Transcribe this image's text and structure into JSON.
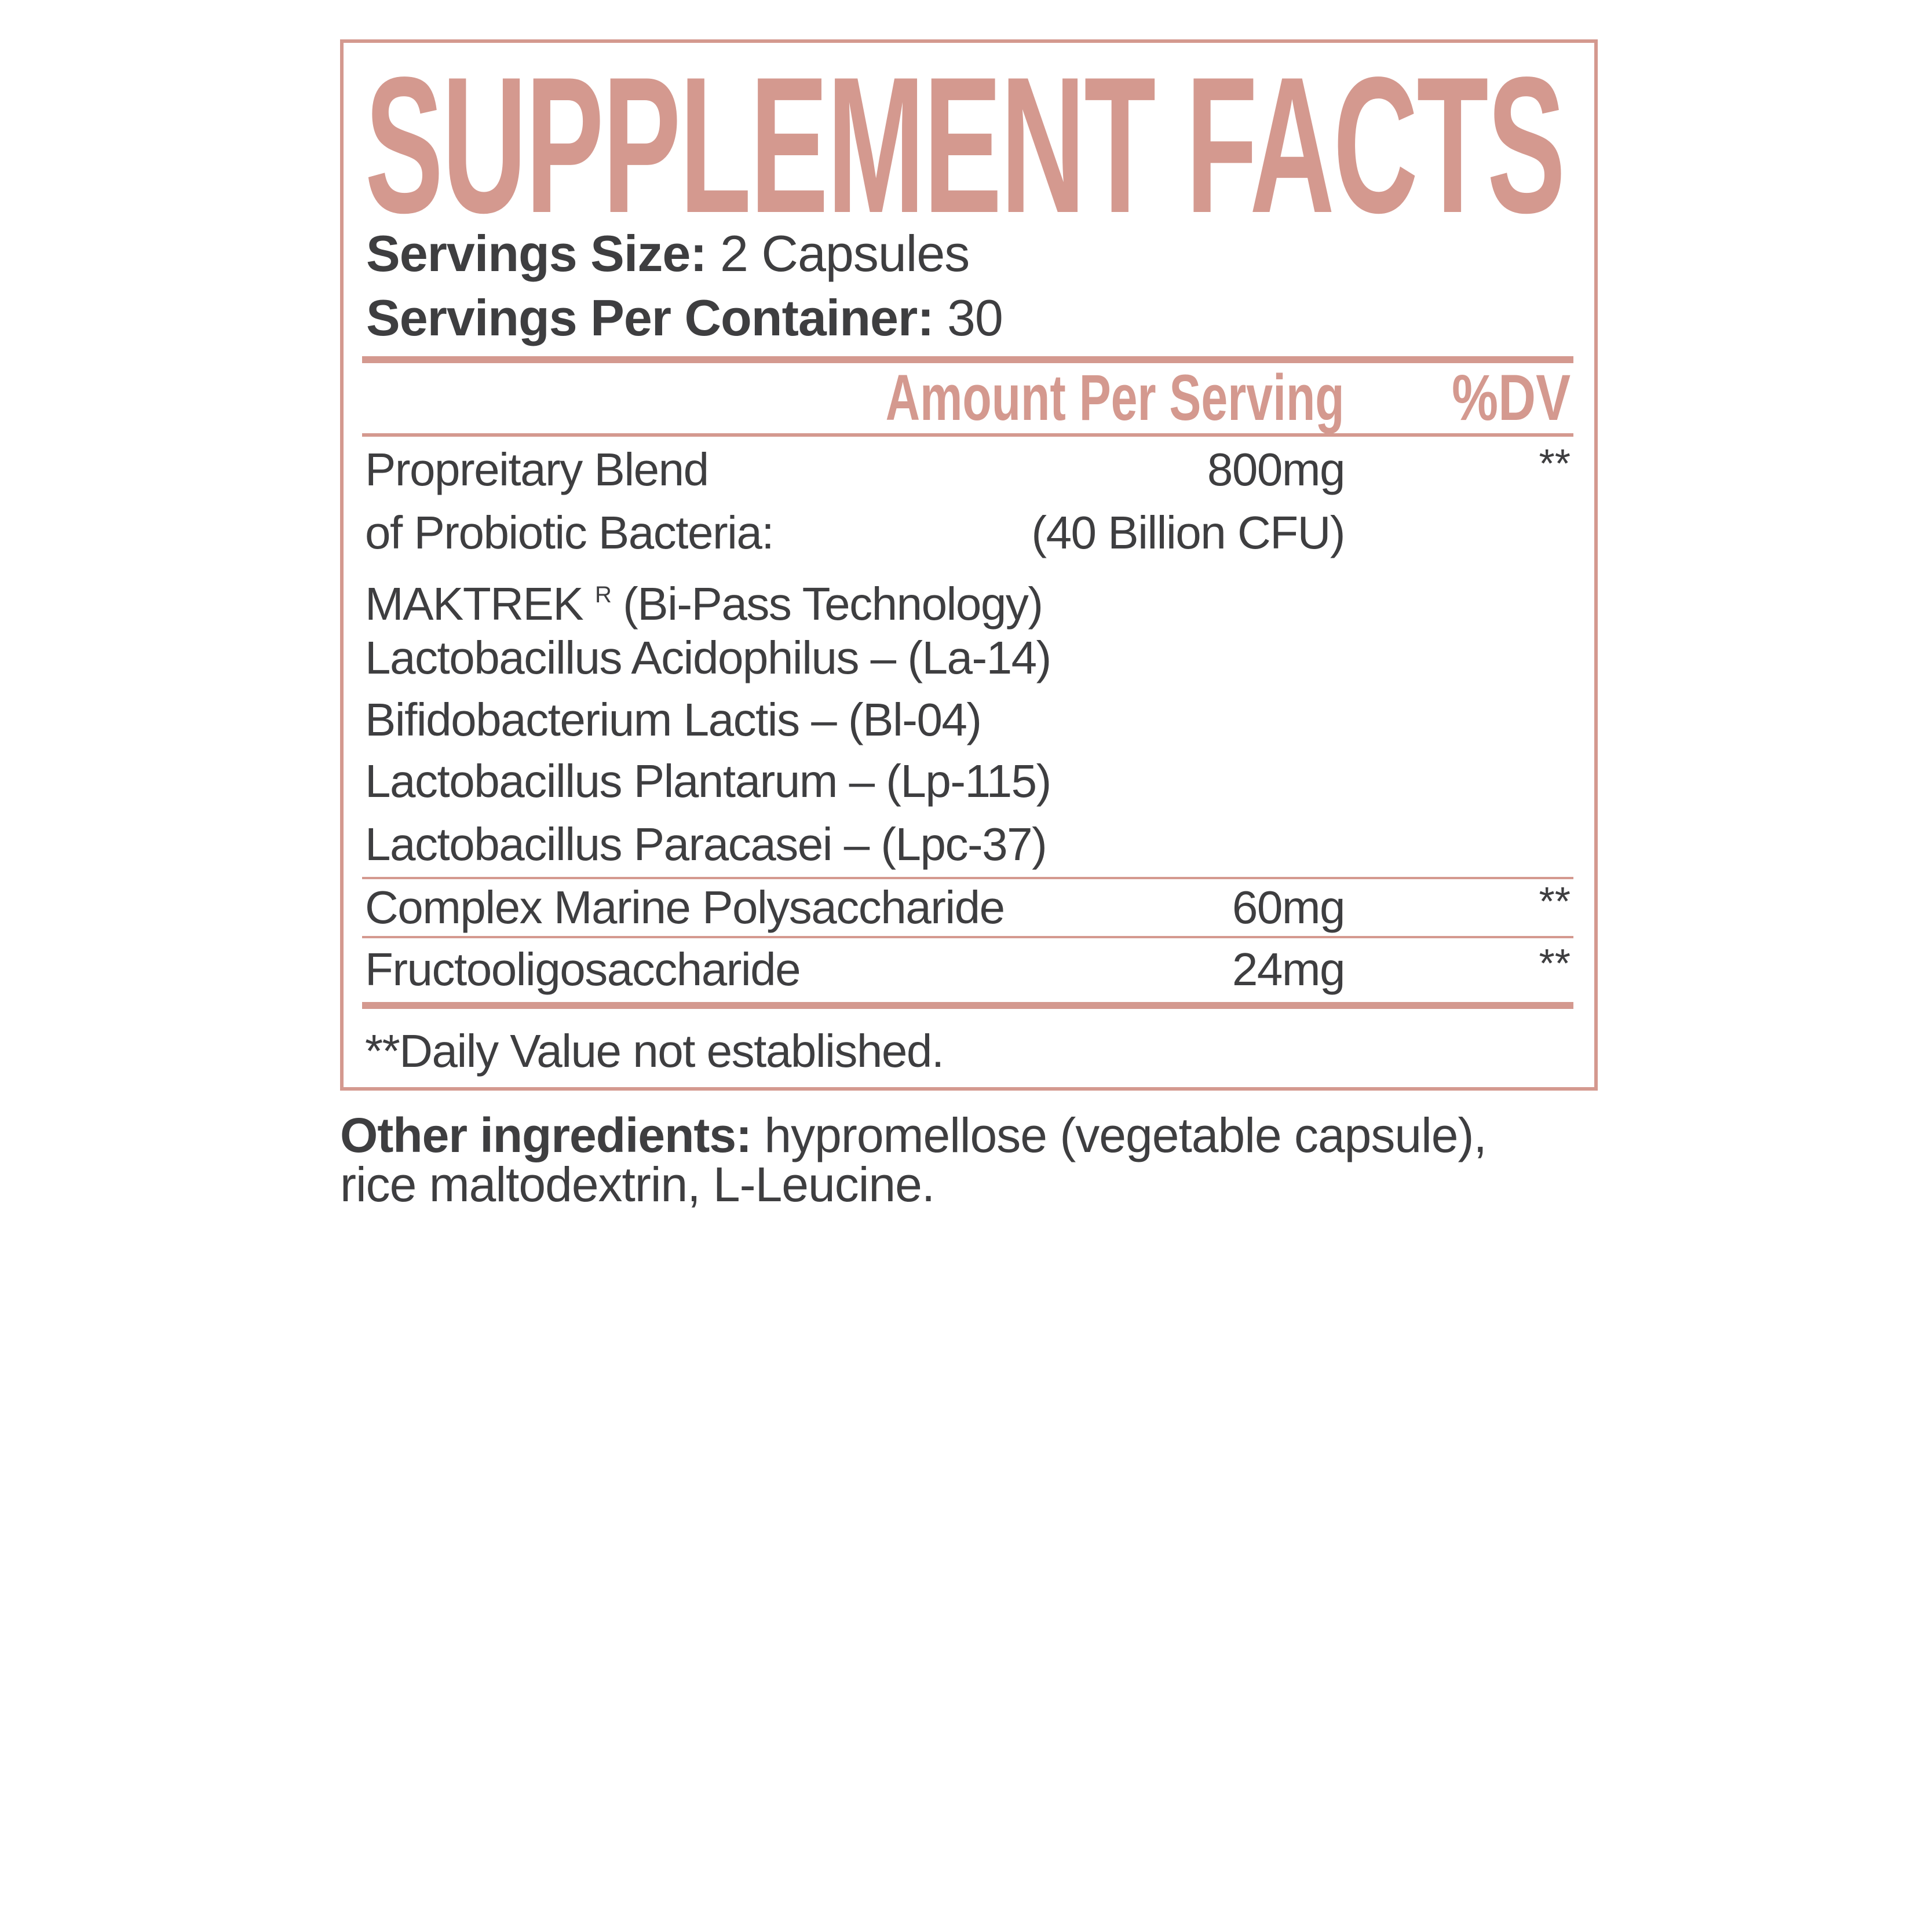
{
  "colors": {
    "accent": "#d4998f",
    "text": "#3e3e40"
  },
  "title": "SUPPLEMENT FACTS",
  "serving_size": {
    "label": "Servings Size:",
    "value": "2 Capsules"
  },
  "servings_per_container": {
    "label": "Servings Per Container:",
    "value": "30"
  },
  "header": {
    "amount": "Amount Per Serving",
    "dv": "%DV"
  },
  "blend": {
    "line1": "Propreitary Blend",
    "line2": "of Probiotic Bacteria:",
    "amount1": "800mg",
    "amount2": "(40 Billion CFU)",
    "dv": "**",
    "brand": "MAKTREK",
    "brand_mark": "R",
    "brand_note": "(Bi-Pass Technology)",
    "strains": [
      "Lactobacillus Acidophilus – (La-14)",
      "Bifidobacterium Lactis – (Bl-04)",
      "Lactobacillus Plantarum – (Lp-115)",
      "Lactobacillus Paracasei – (Lpc-37)"
    ]
  },
  "rows": [
    {
      "name": "Complex Marine Polysaccharide",
      "amount": "60mg",
      "dv": "**"
    },
    {
      "name": "Fructooligosaccharide",
      "amount": "24mg",
      "dv": "**"
    }
  ],
  "footnote": "**Daily Value not established.",
  "other_ingredients": {
    "label": "Other ingredients:",
    "line1": "hypromellose (vegetable capsule),",
    "line2": "rice maltodextrin, L-Leucine."
  }
}
